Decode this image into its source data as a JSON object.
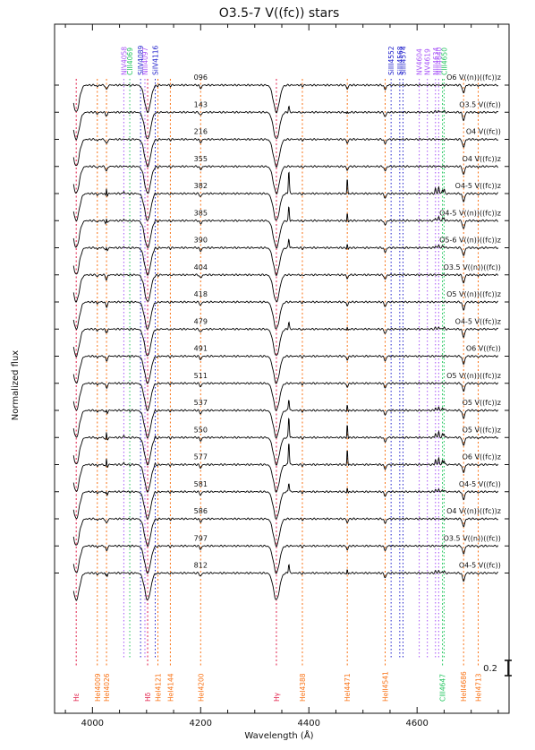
{
  "chart_data": {
    "type": "line",
    "title": "O3.5-7 V((fc)) stars",
    "xlabel": "Wavelength (Å)",
    "ylabel": "Normalized flux",
    "xlim": [
      3930,
      4770
    ],
    "x_ticks": [
      4000,
      4200,
      4400,
      4600
    ],
    "scale_bar_label": "0.2",
    "spectra": [
      {
        "id": "096",
        "sptype": "O6 V((n))((fc))z",
        "emission": 0.0
      },
      {
        "id": "143",
        "sptype": "O3.5 V((fc))",
        "emission": 0.25
      },
      {
        "id": "216",
        "sptype": "O4 V((fc))",
        "emission": 0.0
      },
      {
        "id": "355",
        "sptype": "O4 V((fc))z",
        "emission": 0.0
      },
      {
        "id": "382",
        "sptype": "O4-5 V((fc))z",
        "emission": 1.0
      },
      {
        "id": "385",
        "sptype": "O4-5 V((n))((fc))z",
        "emission": 0.6
      },
      {
        "id": "390",
        "sptype": "O5-6 V((n))((fc))z",
        "emission": 0.4
      },
      {
        "id": "404",
        "sptype": "O3.5 V((n))((fc))",
        "emission": 0.0
      },
      {
        "id": "418",
        "sptype": "O5 V((n))((fc))z",
        "emission": 0.0
      },
      {
        "id": "479",
        "sptype": "O4-5 V((fc))z",
        "emission": 0.3
      },
      {
        "id": "491",
        "sptype": "O6 V((fc))",
        "emission": 0.0
      },
      {
        "id": "511",
        "sptype": "O5 V((n))((fc))z",
        "emission": 0.0
      },
      {
        "id": "537",
        "sptype": "O5 V((fc))z",
        "emission": 0.5
      },
      {
        "id": "550",
        "sptype": "O5 V((fc))z",
        "emission": 0.9
      },
      {
        "id": "577",
        "sptype": "O6 V((fc))z",
        "emission": 1.0
      },
      {
        "id": "581",
        "sptype": "O4-5 V((fc))",
        "emission": 0.4
      },
      {
        "id": "586",
        "sptype": "O4 V((n))((fc))z",
        "emission": 0.0
      },
      {
        "id": "797",
        "sptype": "O3.5 V((n))((fc))",
        "emission": 0.0
      },
      {
        "id": "812",
        "sptype": "O4-5 V((fc))",
        "emission": 0.4
      }
    ],
    "top_lines": [
      {
        "label": "NIV4058",
        "wavelength": 4058,
        "color": "#a855f7"
      },
      {
        "label": "CIII4069",
        "wavelength": 4069,
        "color": "#22c55e"
      },
      {
        "label": "SiIV4089",
        "wavelength": 4089,
        "color": "#2222cc"
      },
      {
        "label": "NIII4097",
        "wavelength": 4097,
        "color": "#a855f7"
      },
      {
        "label": "SiIV4116",
        "wavelength": 4116,
        "color": "#2222cc"
      },
      {
        "label": "SiIII4552",
        "wavelength": 4552,
        "color": "#2222cc"
      },
      {
        "label": "SiIII4568",
        "wavelength": 4568,
        "color": "#2222cc"
      },
      {
        "label": "SiIII4574",
        "wavelength": 4574,
        "color": "#2222cc"
      },
      {
        "label": "NV4604",
        "wavelength": 4604,
        "color": "#a855f7"
      },
      {
        "label": "NV4619",
        "wavelength": 4619,
        "color": "#a855f7"
      },
      {
        "label": "NIII4634",
        "wavelength": 4634,
        "color": "#a855f7"
      },
      {
        "label": "NIII4640",
        "wavelength": 4640,
        "color": "#a855f7"
      },
      {
        "label": "CIII4650",
        "wavelength": 4650,
        "color": "#22c55e"
      }
    ],
    "bottom_lines": [
      {
        "label": "Hε",
        "wavelength": 3970,
        "color": "#e11d48"
      },
      {
        "label": "HeI4009",
        "wavelength": 4009,
        "color": "#f97316"
      },
      {
        "label": "HeI4026",
        "wavelength": 4026,
        "color": "#f97316"
      },
      {
        "label": "Hδ",
        "wavelength": 4102,
        "color": "#e11d48"
      },
      {
        "label": "HeI4121",
        "wavelength": 4121,
        "color": "#f97316"
      },
      {
        "label": "HeI4144",
        "wavelength": 4144,
        "color": "#f97316"
      },
      {
        "label": "HeI4200",
        "wavelength": 4200,
        "color": "#f97316"
      },
      {
        "label": "Hγ",
        "wavelength": 4340,
        "color": "#e11d48"
      },
      {
        "label": "HeI4388",
        "wavelength": 4388,
        "color": "#f97316"
      },
      {
        "label": "HeI4471",
        "wavelength": 4471,
        "color": "#f97316"
      },
      {
        "label": "HeII4541",
        "wavelength": 4541,
        "color": "#f97316"
      },
      {
        "label": "CIII4647",
        "wavelength": 4647,
        "color": "#22c55e"
      },
      {
        "label": "HeII4686",
        "wavelength": 4686,
        "color": "#f97316"
      },
      {
        "label": "HeI4713",
        "wavelength": 4713,
        "color": "#f97316"
      }
    ]
  }
}
